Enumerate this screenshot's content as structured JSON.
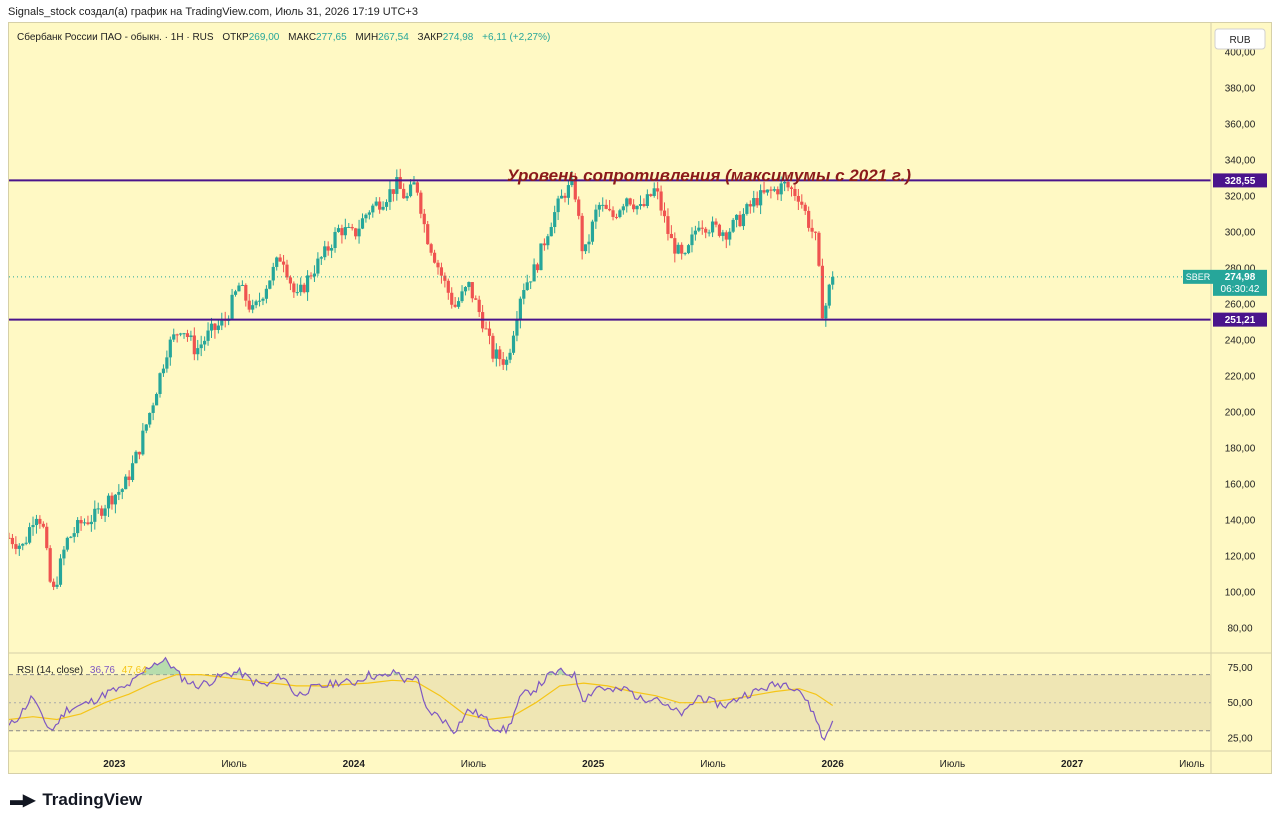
{
  "header": {
    "author_line": "Signals_stock создал(а) график на TradingView.com, Июль 31, 2026 17:19 UTC+3"
  },
  "legend": {
    "symbol_desc": "Сбербанк России ПАО - обыкн. · 1Н · RUS",
    "open_label": "ОТКР",
    "open_value": "269,00",
    "high_label": "МАКС",
    "high_value": "277,65",
    "low_label": "МИН",
    "low_value": "267,54",
    "close_label": "ЗАКР",
    "close_value": "274,98",
    "change": "+6,11 (+2,27%)"
  },
  "currency_badge": "RUB",
  "annotation": "Уровень сопротивления (максимумы с 2021 г.)",
  "price_tag": {
    "ticker": "SBER",
    "price": "274,98",
    "countdown": "06:30:42"
  },
  "colors": {
    "background": "#fff9c4",
    "up": "#26a69a",
    "down": "#ef5350",
    "level_line": "#4a148c",
    "annotation": "#8b1a1a",
    "rsi_line": "#7e57c2",
    "rsi_ma": "#f5c518"
  },
  "rsi": {
    "label": "RSI (14, close)",
    "value": "36,76",
    "ma_value": "47,64"
  },
  "footer": {
    "brand": "TradingView"
  },
  "chart_data": [
    {
      "type": "candlestick",
      "title": "",
      "price_axis": {
        "ylim": [
          66,
          416
        ],
        "ticks": [
          80,
          100,
          120,
          140,
          160,
          180,
          200,
          220,
          240,
          260,
          280,
          300,
          320,
          340,
          360,
          380,
          400
        ],
        "tick_labels": [
          "80,00",
          "100,00",
          "120,00",
          "140,00",
          "160,00",
          "180,00",
          "200,00",
          "220,00",
          "240,00",
          "260,00",
          "280,00",
          "300,00",
          "320,00",
          "340,00",
          "360,00",
          "380,00",
          "400,00"
        ]
      },
      "time_axis": {
        "labels": [
          "2023",
          "Июль",
          "2024",
          "Июль",
          "2025",
          "Июль",
          "2026",
          "Июль",
          "2027",
          "Июль"
        ],
        "positions": [
          2023.0,
          2023.5,
          2024.0,
          2024.5,
          2025.0,
          2025.5,
          2026.0,
          2026.5,
          2027.0,
          2027.5
        ],
        "xlim": [
          2022.56,
          2027.58
        ]
      },
      "levels": [
        {
          "value": 328.55,
          "label": "328,55"
        },
        {
          "value": 251.21,
          "label": "251,21"
        }
      ],
      "last_price": 274.98,
      "price_path": [
        [
          2022.56,
          130
        ],
        [
          2022.62,
          125
        ],
        [
          2022.67,
          145
        ],
        [
          2022.7,
          138
        ],
        [
          2022.74,
          97
        ],
        [
          2022.8,
          128
        ],
        [
          2022.86,
          138
        ],
        [
          2022.92,
          142
        ],
        [
          2022.98,
          152
        ],
        [
          2023.04,
          158
        ],
        [
          2023.1,
          178
        ],
        [
          2023.16,
          205
        ],
        [
          2023.22,
          235
        ],
        [
          2023.28,
          248
        ],
        [
          2023.34,
          234
        ],
        [
          2023.4,
          244
        ],
        [
          2023.46,
          250
        ],
        [
          2023.52,
          270
        ],
        [
          2023.58,
          255
        ],
        [
          2023.64,
          272
        ],
        [
          2023.7,
          288
        ],
        [
          2023.76,
          262
        ],
        [
          2023.82,
          277
        ],
        [
          2023.88,
          288
        ],
        [
          2023.94,
          302
        ],
        [
          2024.0,
          298
        ],
        [
          2024.06,
          312
        ],
        [
          2024.12,
          318
        ],
        [
          2024.18,
          326
        ],
        [
          2024.22,
          318
        ],
        [
          2024.26,
          328
        ],
        [
          2024.3,
          300
        ],
        [
          2024.36,
          278
        ],
        [
          2024.42,
          258
        ],
        [
          2024.48,
          270
        ],
        [
          2024.54,
          250
        ],
        [
          2024.58,
          232
        ],
        [
          2024.64,
          228
        ],
        [
          2024.7,
          268
        ],
        [
          2024.76,
          280
        ],
        [
          2024.82,
          305
        ],
        [
          2024.88,
          322
        ],
        [
          2024.92,
          326
        ],
        [
          2024.96,
          285
        ],
        [
          2025.02,
          315
        ],
        [
          2025.08,
          308
        ],
        [
          2025.14,
          320
        ],
        [
          2025.2,
          312
        ],
        [
          2025.26,
          324
        ],
        [
          2025.32,
          296
        ],
        [
          2025.38,
          283
        ],
        [
          2025.44,
          306
        ],
        [
          2025.5,
          302
        ],
        [
          2025.56,
          300
        ],
        [
          2025.62,
          308
        ],
        [
          2025.68,
          318
        ],
        [
          2025.74,
          322
        ],
        [
          2025.8,
          326
        ],
        [
          2025.86,
          320
        ],
        [
          2025.9,
          305
        ],
        [
          2025.93,
          295
        ],
        [
          2025.96,
          252
        ],
        [
          2025.985,
          268
        ],
        [
          2026.0,
          275
        ]
      ]
    },
    {
      "type": "line",
      "title": "",
      "ylim": [
        17,
        84
      ],
      "ticks": [
        25,
        50,
        75
      ],
      "tick_labels": [
        "25,00",
        "50,00",
        "75,00"
      ],
      "band": [
        30,
        70
      ],
      "series_path": [
        [
          2022.56,
          33
        ],
        [
          2022.6,
          40
        ],
        [
          2022.66,
          55
        ],
        [
          2022.7,
          38
        ],
        [
          2022.74,
          30
        ],
        [
          2022.8,
          45
        ],
        [
          2022.86,
          48
        ],
        [
          2022.92,
          52
        ],
        [
          2022.98,
          58
        ],
        [
          2023.04,
          60
        ],
        [
          2023.1,
          68
        ],
        [
          2023.16,
          78
        ],
        [
          2023.22,
          80
        ],
        [
          2023.28,
          68
        ],
        [
          2023.34,
          62
        ],
        [
          2023.4,
          65
        ],
        [
          2023.46,
          70
        ],
        [
          2023.52,
          72
        ],
        [
          2023.58,
          65
        ],
        [
          2023.64,
          62
        ],
        [
          2023.7,
          70
        ],
        [
          2023.76,
          55
        ],
        [
          2023.82,
          60
        ],
        [
          2023.88,
          62
        ],
        [
          2023.94,
          65
        ],
        [
          2024.0,
          64
        ],
        [
          2024.06,
          70
        ],
        [
          2024.12,
          68
        ],
        [
          2024.18,
          72
        ],
        [
          2024.22,
          65
        ],
        [
          2024.26,
          70
        ],
        [
          2024.3,
          45
        ],
        [
          2024.36,
          40
        ],
        [
          2024.42,
          30
        ],
        [
          2024.48,
          45
        ],
        [
          2024.54,
          40
        ],
        [
          2024.58,
          33
        ],
        [
          2024.64,
          30
        ],
        [
          2024.7,
          55
        ],
        [
          2024.76,
          60
        ],
        [
          2024.82,
          70
        ],
        [
          2024.86,
          72
        ],
        [
          2024.92,
          70
        ],
        [
          2024.96,
          52
        ],
        [
          2025.02,
          62
        ],
        [
          2025.08,
          58
        ],
        [
          2025.14,
          60
        ],
        [
          2025.2,
          52
        ],
        [
          2025.26,
          55
        ],
        [
          2025.32,
          45
        ],
        [
          2025.38,
          42
        ],
        [
          2025.44,
          55
        ],
        [
          2025.5,
          50
        ],
        [
          2025.56,
          48
        ],
        [
          2025.62,
          55
        ],
        [
          2025.68,
          58
        ],
        [
          2025.74,
          62
        ],
        [
          2025.8,
          64
        ],
        [
          2025.86,
          60
        ],
        [
          2025.9,
          48
        ],
        [
          2025.93,
          40
        ],
        [
          2025.96,
          22
        ],
        [
          2025.985,
          32
        ],
        [
          2026.0,
          37
        ]
      ],
      "ma_path": [
        [
          2022.56,
          38
        ],
        [
          2022.66,
          40
        ],
        [
          2022.76,
          38
        ],
        [
          2022.86,
          42
        ],
        [
          2022.96,
          50
        ],
        [
          2023.06,
          56
        ],
        [
          2023.16,
          64
        ],
        [
          2023.26,
          70
        ],
        [
          2023.36,
          70
        ],
        [
          2023.46,
          68
        ],
        [
          2023.56,
          66
        ],
        [
          2023.66,
          64
        ],
        [
          2023.76,
          62
        ],
        [
          2023.86,
          62
        ],
        [
          2023.96,
          63
        ],
        [
          2024.06,
          64
        ],
        [
          2024.16,
          66
        ],
        [
          2024.26,
          65
        ],
        [
          2024.36,
          55
        ],
        [
          2024.46,
          42
        ],
        [
          2024.56,
          38
        ],
        [
          2024.66,
          40
        ],
        [
          2024.76,
          50
        ],
        [
          2024.86,
          62
        ],
        [
          2024.96,
          64
        ],
        [
          2025.06,
          62
        ],
        [
          2025.16,
          58
        ],
        [
          2025.26,
          55
        ],
        [
          2025.36,
          50
        ],
        [
          2025.46,
          50
        ],
        [
          2025.56,
          52
        ],
        [
          2025.66,
          55
        ],
        [
          2025.76,
          58
        ],
        [
          2025.86,
          60
        ],
        [
          2025.93,
          56
        ],
        [
          2026.0,
          48
        ]
      ]
    }
  ]
}
